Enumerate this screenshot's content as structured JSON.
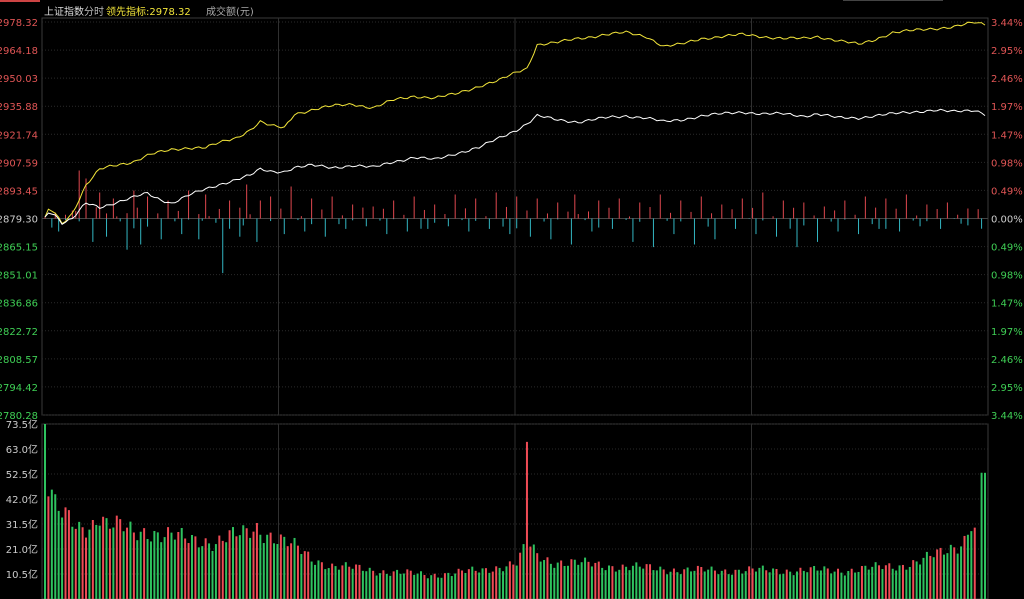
{
  "header": {
    "index_name": "上证指数",
    "tab": "分时",
    "leader_label": "领先指标:2978.32",
    "volume_label": "成交额(元)"
  },
  "colors": {
    "up": "#e0484f",
    "down": "#33b6c2",
    "volume_up": "#ef4b55",
    "volume_down": "#2ec25f",
    "price_line": "#ffffff",
    "leader_line": "#f2e53a",
    "grid": "#2a2a2a",
    "axis_red": "#e05555",
    "axis_green": "#3fcf55"
  },
  "chart_data": [
    {
      "type": "line",
      "base_price": 2879.3,
      "ylim": [
        2780.28,
        2978.32
      ],
      "y_ticks_left": [
        "2978.32",
        "2964.18",
        "2950.03",
        "2935.88",
        "2921.74",
        "2907.59",
        "2893.45",
        "2879.30",
        "2865.15",
        "2851.01",
        "2836.86",
        "2822.72",
        "2808.57",
        "2794.42",
        "2780.28"
      ],
      "y_ticks_right": [
        "3.44%",
        "2.95%",
        "2.46%",
        "1.97%",
        "1.47%",
        "0.98%",
        "0.49%",
        "0.00%",
        "0.49%",
        "0.98%",
        "1.47%",
        "1.97%",
        "2.46%",
        "2.95%",
        "3.44%"
      ],
      "series": [
        {
          "name": "领先指标",
          "anchors": [
            [
              0,
              2880
            ],
            [
              1,
              2884
            ],
            [
              3,
              2882
            ],
            [
              5,
              2877
            ],
            [
              8,
              2882
            ],
            [
              12,
              2896
            ],
            [
              16,
              2904
            ],
            [
              20,
              2906
            ],
            [
              26,
              2908
            ],
            [
              30,
              2911
            ],
            [
              32,
              2912
            ],
            [
              37,
              2914
            ],
            [
              42,
              2915
            ],
            [
              47,
              2915
            ],
            [
              52,
              2918
            ],
            [
              56,
              2920
            ],
            [
              60,
              2924
            ],
            [
              63,
              2928
            ],
            [
              66,
              2926
            ],
            [
              70,
              2925
            ],
            [
              73,
              2932
            ],
            [
              78,
              2934
            ],
            [
              84,
              2936
            ],
            [
              90,
              2937
            ],
            [
              96,
              2935
            ],
            [
              102,
              2939
            ],
            [
              108,
              2941
            ],
            [
              114,
              2940
            ],
            [
              120,
              2942
            ],
            [
              127,
              2946
            ],
            [
              133,
              2949
            ],
            [
              138,
              2953
            ],
            [
              141,
              2955
            ],
            [
              144,
              2967
            ],
            [
              150,
              2968
            ],
            [
              156,
              2970
            ],
            [
              164,
              2972
            ],
            [
              170,
              2973
            ],
            [
              176,
              2971
            ],
            [
              181,
              2966
            ],
            [
              186,
              2967
            ],
            [
              192,
              2970
            ],
            [
              198,
              2971
            ],
            [
              204,
              2972
            ],
            [
              210,
              2971
            ],
            [
              216,
              2970
            ],
            [
              222,
              2970
            ],
            [
              226,
              2971
            ],
            [
              232,
              2969
            ],
            [
              238,
              2967
            ],
            [
              242,
              2969
            ],
            [
              248,
              2973
            ],
            [
              254,
              2974
            ],
            [
              260,
              2975
            ],
            [
              266,
              2976
            ],
            [
              272,
              2978
            ],
            [
              275,
              2977
            ]
          ]
        },
        {
          "name": "上证指数",
          "anchors": [
            [
              0,
              2880
            ],
            [
              1,
              2882
            ],
            [
              3,
              2881
            ],
            [
              5,
              2877
            ],
            [
              8,
              2879
            ],
            [
              12,
              2887
            ],
            [
              16,
              2885
            ],
            [
              20,
              2887
            ],
            [
              26,
              2890
            ],
            [
              30,
              2892
            ],
            [
              32,
              2890
            ],
            [
              37,
              2887
            ],
            [
              42,
              2891
            ],
            [
              47,
              2894
            ],
            [
              52,
              2897
            ],
            [
              56,
              2899
            ],
            [
              60,
              2901
            ],
            [
              63,
              2904
            ],
            [
              66,
              2903
            ],
            [
              70,
              2903
            ],
            [
              73,
              2905
            ],
            [
              78,
              2906
            ],
            [
              84,
              2905
            ],
            [
              90,
              2906
            ],
            [
              96,
              2905
            ],
            [
              102,
              2908
            ],
            [
              108,
              2910
            ],
            [
              114,
              2909
            ],
            [
              120,
              2912
            ],
            [
              127,
              2915
            ],
            [
              133,
              2920
            ],
            [
              138,
              2924
            ],
            [
              141,
              2927
            ],
            [
              144,
              2931
            ],
            [
              150,
              2929
            ],
            [
              156,
              2928
            ],
            [
              164,
              2930
            ],
            [
              170,
              2931
            ],
            [
              176,
              2930
            ],
            [
              181,
              2928
            ],
            [
              186,
              2929
            ],
            [
              192,
              2931
            ],
            [
              198,
              2932
            ],
            [
              204,
              2933
            ],
            [
              210,
              2932
            ],
            [
              216,
              2932
            ],
            [
              222,
              2931
            ],
            [
              226,
              2932
            ],
            [
              232,
              2930
            ],
            [
              238,
              2930
            ],
            [
              242,
              2931
            ],
            [
              248,
              2932
            ],
            [
              254,
              2933
            ],
            [
              260,
              2934
            ],
            [
              266,
              2933
            ],
            [
              272,
              2934
            ],
            [
              275,
              2932
            ]
          ]
        }
      ]
    },
    {
      "type": "bar",
      "name": "strength",
      "up_ticks": [
        [
          8,
          4
        ],
        [
          10,
          24
        ],
        [
          12,
          20
        ],
        [
          16,
          13
        ],
        [
          20,
          10
        ],
        [
          26,
          14
        ],
        [
          30,
          11
        ],
        [
          36,
          9
        ],
        [
          42,
          14
        ],
        [
          47,
          12
        ],
        [
          54,
          9
        ],
        [
          59,
          17
        ],
        [
          63,
          9
        ],
        [
          66,
          11
        ],
        [
          72,
          16
        ],
        [
          78,
          10
        ],
        [
          84,
          11
        ],
        [
          90,
          7
        ],
        [
          96,
          6
        ],
        [
          102,
          9
        ],
        [
          108,
          11
        ],
        [
          114,
          7
        ],
        [
          120,
          12
        ],
        [
          126,
          10
        ],
        [
          132,
          13
        ],
        [
          138,
          11
        ],
        [
          144,
          10
        ],
        [
          150,
          8
        ],
        [
          155,
          12
        ],
        [
          162,
          9
        ],
        [
          168,
          10
        ],
        [
          174,
          8
        ],
        [
          180,
          12
        ],
        [
          186,
          9
        ],
        [
          192,
          11
        ],
        [
          198,
          7
        ],
        [
          204,
          10
        ],
        [
          210,
          13
        ],
        [
          216,
          9
        ],
        [
          222,
          8
        ],
        [
          228,
          6
        ],
        [
          234,
          9
        ],
        [
          240,
          11
        ],
        [
          246,
          10
        ],
        [
          252,
          12
        ],
        [
          258,
          7
        ],
        [
          264,
          8
        ],
        [
          270,
          5
        ]
      ],
      "down_ticks": [
        [
          4,
          5
        ],
        [
          14,
          9
        ],
        [
          18,
          7
        ],
        [
          24,
          12
        ],
        [
          28,
          10
        ],
        [
          34,
          8
        ],
        [
          40,
          6
        ],
        [
          45,
          8
        ],
        [
          52,
          21
        ],
        [
          57,
          7
        ],
        [
          62,
          9
        ],
        [
          70,
          6
        ],
        [
          76,
          5
        ],
        [
          82,
          7
        ],
        [
          88,
          4
        ],
        [
          94,
          3
        ],
        [
          100,
          6
        ],
        [
          106,
          5
        ],
        [
          112,
          4
        ],
        [
          118,
          3
        ],
        [
          124,
          5
        ],
        [
          130,
          4
        ],
        [
          136,
          6
        ],
        [
          142,
          7
        ],
        [
          148,
          8
        ],
        [
          154,
          10
        ],
        [
          160,
          5
        ],
        [
          166,
          4
        ],
        [
          172,
          9
        ],
        [
          178,
          11
        ],
        [
          184,
          6
        ],
        [
          190,
          10
        ],
        [
          196,
          8
        ],
        [
          202,
          4
        ],
        [
          208,
          6
        ],
        [
          214,
          7
        ],
        [
          220,
          11
        ],
        [
          226,
          9
        ],
        [
          232,
          5
        ],
        [
          238,
          6
        ],
        [
          244,
          4
        ],
        [
          250,
          5
        ],
        [
          256,
          3
        ],
        [
          262,
          4
        ],
        [
          268,
          2
        ]
      ]
    },
    {
      "type": "bar",
      "name": "成交额",
      "ylim": [
        0,
        73.5
      ],
      "y_ticks": [
        "73.5亿",
        "63.0亿",
        "52.5亿",
        "42.0亿",
        "31.5亿",
        "21.0亿",
        "10.5亿"
      ],
      "anchors": [
        [
          0,
          73.5
        ],
        [
          1,
          48
        ],
        [
          2,
          44
        ],
        [
          3,
          38
        ],
        [
          4,
          36
        ],
        [
          6,
          34
        ],
        [
          10,
          30
        ],
        [
          14,
          32
        ],
        [
          16,
          36
        ],
        [
          18,
          31
        ],
        [
          22,
          30
        ],
        [
          26,
          28
        ],
        [
          30,
          29
        ],
        [
          34,
          27
        ],
        [
          38,
          26
        ],
        [
          42,
          25
        ],
        [
          46,
          25
        ],
        [
          50,
          24
        ],
        [
          54,
          26
        ],
        [
          58,
          27
        ],
        [
          62,
          30
        ],
        [
          66,
          27
        ],
        [
          70,
          24
        ],
        [
          74,
          21
        ],
        [
          78,
          17
        ],
        [
          84,
          14
        ],
        [
          90,
          13
        ],
        [
          96,
          12
        ],
        [
          104,
          11
        ],
        [
          112,
          10
        ],
        [
          120,
          11
        ],
        [
          128,
          12
        ],
        [
          134,
          14
        ],
        [
          138,
          15
        ],
        [
          140,
          20
        ],
        [
          141,
          66
        ],
        [
          142,
          22
        ],
        [
          144,
          18
        ],
        [
          148,
          16
        ],
        [
          156,
          15
        ],
        [
          164,
          14
        ],
        [
          176,
          13
        ],
        [
          188,
          12
        ],
        [
          200,
          12
        ],
        [
          212,
          12
        ],
        [
          224,
          12
        ],
        [
          234,
          12
        ],
        [
          242,
          13
        ],
        [
          250,
          14
        ],
        [
          256,
          16
        ],
        [
          262,
          19
        ],
        [
          266,
          22
        ],
        [
          268,
          24
        ],
        [
          270,
          27
        ],
        [
          272,
          30
        ],
        [
          273,
          0
        ],
        [
          274,
          53
        ]
      ]
    }
  ]
}
